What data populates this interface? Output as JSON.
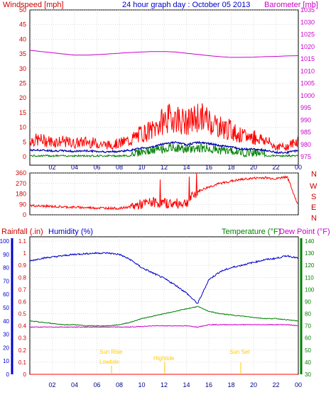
{
  "header": {
    "left_title": "Windspeed [mph]",
    "center_title": "24 hour graph day : October 05 2013",
    "right_title": "Barometer [mb]"
  },
  "x_axis": {
    "tick_labels": [
      "02",
      "04",
      "06",
      "08",
      "10",
      "12",
      "14",
      "16",
      "18",
      "20",
      "22",
      "00"
    ]
  },
  "wind_panel": {
    "y_left_ticks": [
      "0",
      "5",
      "10",
      "15",
      "20",
      "25",
      "30",
      "35",
      "40",
      "45",
      "50"
    ],
    "y_right_ticks": [
      "975",
      "980",
      "985",
      "990",
      "995",
      "1000",
      "1005",
      "1010",
      "1015",
      "1020",
      "1025",
      "1030",
      "1035"
    ]
  },
  "direction_panel": {
    "y_left_ticks": [
      "0",
      "90",
      "180",
      "270",
      "360"
    ],
    "compass_labels": [
      "N",
      "W",
      "S",
      "E",
      "N"
    ]
  },
  "lower_panel": {
    "labels": {
      "rainfall": "Rainfall (.in)",
      "humidity": "Humidity (%)",
      "temperature": "Temperature (°F)",
      "dewpoint": "Dew Point (°F)"
    },
    "humidity_ticks": [
      "0",
      "10",
      "20",
      "30",
      "40",
      "50",
      "60",
      "70",
      "80",
      "90",
      "100"
    ],
    "rain_ticks": [
      "0",
      "0.1",
      "0.2",
      "0.3",
      "0.4",
      "0.5",
      "0.6",
      "0.7",
      "0.8",
      "0.9",
      "1",
      "1.1"
    ],
    "temp_ticks": [
      "30",
      "40",
      "50",
      "60",
      "70",
      "80",
      "90",
      "100",
      "110",
      "120",
      "130",
      "140"
    ],
    "annotations": {
      "sunrise": "Sun Rise",
      "lowtide": "Lowtide",
      "hightide": "Hightide",
      "sunset": "Sun Set"
    }
  },
  "colors": {
    "wind": "#ff0000",
    "gust_avg": "#0000aa",
    "ground": "#008000",
    "barometer": "#cc00cc",
    "direction": "#ff0000",
    "humidity": "#0000cc",
    "temperature": "#008000",
    "dewpoint": "#cc00cc",
    "rain": "#ff0000",
    "annotation": "#ffcc00",
    "grid": "#bbbbbb"
  },
  "chart_data": [
    {
      "type": "line",
      "title": "24 hour graph day : October 05 2013",
      "x": [
        0,
        1,
        2,
        3,
        4,
        5,
        6,
        7,
        8,
        9,
        10,
        11,
        12,
        13,
        14,
        15,
        16,
        17,
        18,
        19,
        20,
        21,
        22,
        23,
        24
      ],
      "series": [
        {
          "name": "Windspeed [mph]",
          "axis": "left",
          "values": [
            5,
            5,
            4.5,
            4.5,
            4,
            4.5,
            4,
            3.5,
            4,
            5,
            7,
            8,
            11,
            12,
            10,
            12,
            11,
            9,
            8,
            6,
            6,
            5,
            3,
            3,
            5
          ]
        },
        {
          "name": "Barometer [mb]",
          "axis": "right",
          "values": [
            1018.5,
            1018,
            1017.5,
            1017,
            1016.5,
            1016.5,
            1016.7,
            1017,
            1017.3,
            1017.6,
            1017.8,
            1018,
            1018,
            1017.8,
            1017.3,
            1016.8,
            1016.3,
            1015.9,
            1015.6,
            1015.6,
            1015.7,
            1015.9,
            1016,
            1016.2,
            1016.3
          ]
        }
      ],
      "ylim_left": [
        0,
        50
      ],
      "ylim_right": [
        975,
        1035
      ]
    },
    {
      "type": "line",
      "x": [
        0,
        1,
        2,
        3,
        4,
        5,
        6,
        7,
        8,
        9,
        10,
        11,
        12,
        13,
        14,
        15,
        16,
        17,
        18,
        19,
        20,
        21,
        22,
        23,
        24
      ],
      "series": [
        {
          "values": [
            80,
            75,
            72,
            68,
            65,
            62,
            60,
            58,
            55,
            70,
            90,
            110,
            100,
            95,
            105,
            200,
            240,
            270,
            290,
            305,
            315,
            320,
            310,
            330,
            75
          ]
        }
      ],
      "ylim": [
        0,
        360
      ]
    },
    {
      "type": "line",
      "x": [
        0,
        1,
        2,
        3,
        4,
        5,
        6,
        7,
        8,
        9,
        10,
        11,
        12,
        13,
        14,
        15,
        16,
        17,
        18,
        19,
        20,
        21,
        22,
        23,
        24
      ],
      "series": [
        {
          "name": "Humidity (%)",
          "axis": "humidity",
          "values": [
            85,
            87,
            88,
            89,
            90,
            90.5,
            91,
            91,
            90,
            86,
            80,
            76,
            72,
            67,
            61,
            53,
            71,
            77,
            80,
            82,
            84,
            86,
            87,
            89,
            87
          ]
        },
        {
          "name": "Temperature (°F)",
          "axis": "temperature",
          "values": [
            74,
            73,
            72,
            71,
            71,
            70,
            70,
            70,
            71,
            73,
            76,
            78,
            80,
            82,
            84,
            86,
            82,
            80,
            79,
            78,
            77,
            76,
            76,
            75,
            74
          ]
        },
        {
          "name": "Dew Point (°F)",
          "axis": "temperature",
          "values": [
            69,
            69,
            69,
            69,
            69,
            69,
            69,
            69,
            69,
            69,
            69.5,
            70,
            70,
            70,
            70,
            69,
            71,
            71,
            71,
            71,
            71,
            71,
            71,
            71,
            70
          ]
        },
        {
          "name": "Rainfall (.in)",
          "axis": "rain",
          "values": [
            0,
            0,
            0,
            0,
            0,
            0,
            0,
            0,
            0,
            0,
            0,
            0,
            0,
            0,
            0,
            0,
            0,
            0,
            0,
            0,
            0,
            0,
            0,
            0,
            0
          ]
        }
      ],
      "ylim_humidity": [
        0,
        100
      ],
      "ylim_rain": [
        0,
        1.1
      ],
      "ylim_temperature": [
        30,
        140
      ]
    }
  ]
}
